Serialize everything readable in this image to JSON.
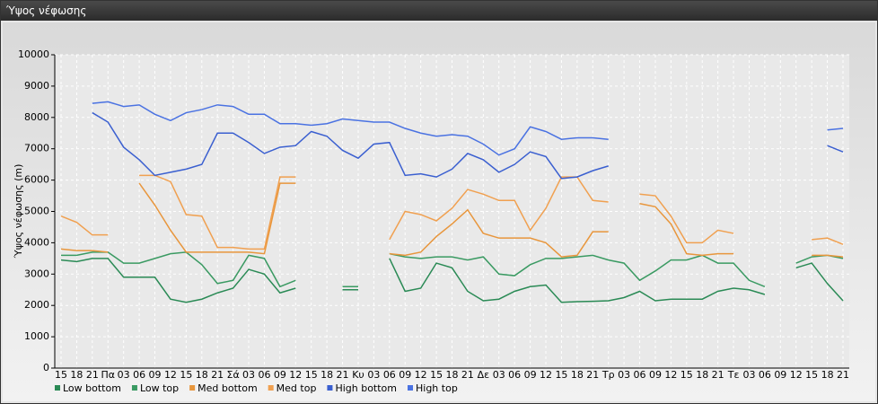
{
  "window_title": "Ύψος νέφωσης",
  "chart_data": {
    "type": "line",
    "ylabel": "Ύψος νέφωσης (m)",
    "categories": [
      "15",
      "18",
      "21",
      "Πα",
      "03",
      "06",
      "09",
      "12",
      "15",
      "18",
      "21",
      "Σά",
      "03",
      "06",
      "09",
      "12",
      "15",
      "18",
      "21",
      "Κυ",
      "03",
      "06",
      "09",
      "12",
      "15",
      "18",
      "21",
      "Δε",
      "03",
      "06",
      "09",
      "12",
      "15",
      "18",
      "21",
      "Τρ",
      "03",
      "06",
      "09",
      "12",
      "15",
      "18",
      "21",
      "Τε",
      "03",
      "06",
      "09",
      "12",
      "15",
      "18",
      "21"
    ],
    "ylim": [
      0,
      10000
    ],
    "yticks": [
      0,
      1000,
      2000,
      3000,
      4000,
      5000,
      6000,
      7000,
      8000,
      9000,
      10000
    ],
    "grid": true,
    "legend": "bottom-left",
    "series": [
      {
        "name": "Low bottom",
        "color": "#2a8a55",
        "values": [
          3450,
          3400,
          3500,
          3500,
          2900,
          2900,
          2900,
          2200,
          2100,
          2200,
          2400,
          2550,
          3150,
          3000,
          2400,
          2550,
          null,
          null,
          2500,
          2500,
          null,
          3500,
          2450,
          2550,
          3350,
          3200,
          2450,
          2150,
          2200,
          2450,
          2600,
          2650,
          2100,
          2120,
          2130,
          2150,
          2250,
          2450,
          2150,
          2200,
          2200,
          2200,
          2450,
          2550,
          2500,
          2350,
          null,
          3200,
          3350,
          2700,
          2150
        ]
      },
      {
        "name": "Low top",
        "color": "#3a9a62",
        "values": [
          3600,
          3600,
          3700,
          3700,
          3350,
          3350,
          3500,
          3650,
          3700,
          3300,
          2700,
          2800,
          3600,
          3500,
          2600,
          2800,
          null,
          null,
          2600,
          2600,
          null,
          3650,
          3550,
          3500,
          3550,
          3550,
          3450,
          3550,
          3000,
          2950,
          3300,
          3500,
          3500,
          3550,
          3600,
          3450,
          3350,
          2800,
          3100,
          3450,
          3450,
          3600,
          3350,
          3350,
          2800,
          2600,
          null,
          3350,
          3550,
          3600,
          3500
        ]
      },
      {
        "name": "Med bottom",
        "color": "#e8963c",
        "values": [
          3800,
          3750,
          3750,
          3700,
          null,
          5900,
          5200,
          4400,
          3700,
          3700,
          3700,
          3700,
          3700,
          3650,
          5900,
          5900,
          null,
          null,
          null,
          null,
          null,
          3650,
          3600,
          3700,
          4200,
          4600,
          5050,
          4300,
          4150,
          4150,
          4150,
          4000,
          3550,
          3600,
          4350,
          4350,
          null,
          5250,
          5150,
          4600,
          3650,
          3600,
          3650,
          3650,
          null,
          null,
          null,
          null,
          3600,
          3600,
          3550
        ]
      },
      {
        "name": "Med top",
        "color": "#f0a050",
        "values": [
          4850,
          4650,
          4250,
          4250,
          null,
          6150,
          6150,
          5950,
          4900,
          4850,
          3850,
          3850,
          3800,
          3800,
          6100,
          6100,
          null,
          null,
          null,
          null,
          null,
          4100,
          5000,
          4900,
          4700,
          5100,
          5700,
          5550,
          5350,
          5350,
          4400,
          5100,
          6100,
          6100,
          5350,
          5300,
          null,
          5550,
          5500,
          4850,
          4000,
          4000,
          4400,
          4300,
          null,
          null,
          null,
          null,
          4100,
          4150,
          3950
        ]
      },
      {
        "name": "High bottom",
        "color": "#3a5fd0",
        "values": [
          null,
          null,
          8150,
          7850,
          7050,
          6650,
          6150,
          6250,
          6350,
          6500,
          7500,
          7500,
          7200,
          6850,
          7050,
          7100,
          7550,
          7400,
          6950,
          6700,
          7150,
          7200,
          6150,
          6200,
          6100,
          6350,
          6850,
          6650,
          6250,
          6500,
          6900,
          6750,
          6050,
          6100,
          6300,
          6450,
          null,
          null,
          null,
          null,
          null,
          null,
          null,
          null,
          null,
          null,
          null,
          null,
          null,
          7100,
          6900
        ]
      },
      {
        "name": "High top",
        "color": "#4a72e2",
        "values": [
          null,
          null,
          8450,
          8500,
          8350,
          8400,
          8100,
          7900,
          8150,
          8250,
          8400,
          8350,
          8100,
          8100,
          7800,
          7800,
          7750,
          7800,
          7950,
          7900,
          7850,
          7850,
          7650,
          7500,
          7400,
          7450,
          7400,
          7150,
          6800,
          7000,
          7700,
          7550,
          7300,
          7350,
          7350,
          7300,
          null,
          null,
          null,
          null,
          null,
          null,
          null,
          null,
          null,
          null,
          null,
          null,
          null,
          7600,
          7650
        ]
      }
    ]
  }
}
